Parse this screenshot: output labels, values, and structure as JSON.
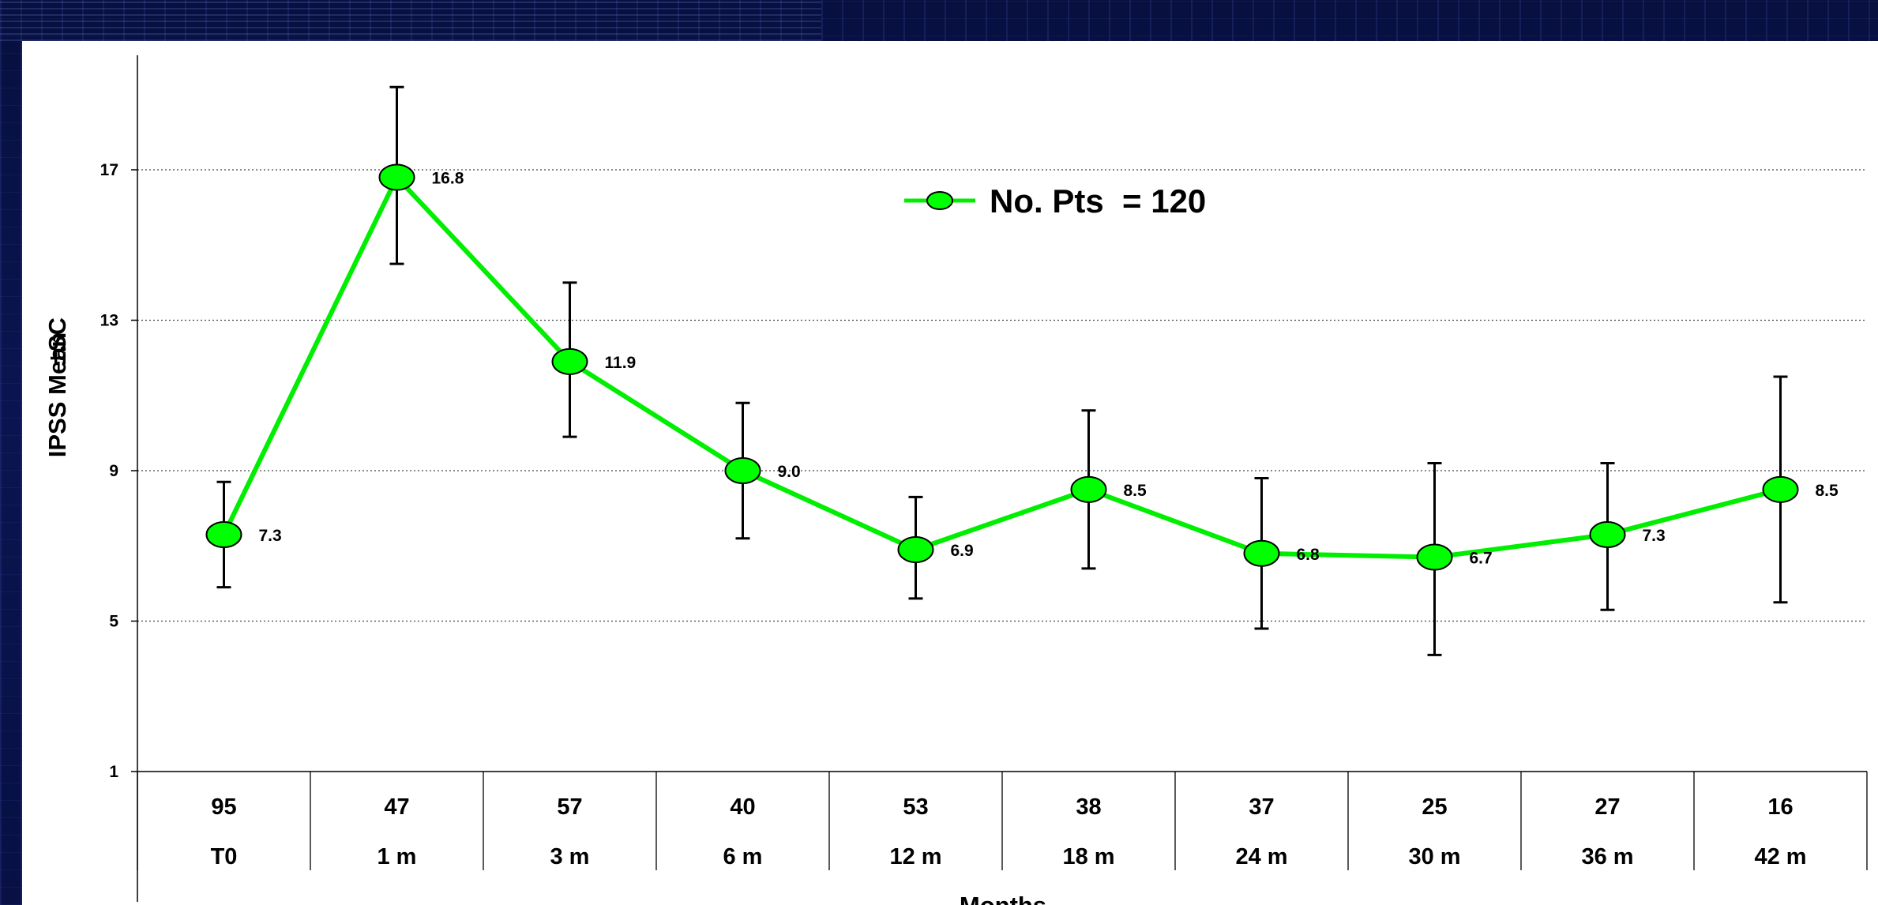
{
  "chart_data": {
    "type": "line",
    "title": "",
    "xlabel": "Months",
    "ylabel": "IPSS Mean",
    "ylabel_overlap": "±SC",
    "ylim": [
      1,
      19
    ],
    "yticks": [
      "17",
      "13",
      "9",
      "5",
      "1"
    ],
    "ytick_values": [
      17,
      13,
      9,
      5,
      1
    ],
    "grid": "horizontal dotted",
    "legend_position": "top-center",
    "categories": [
      "T0",
      "1 m",
      "3 m",
      "6 m",
      "12 m",
      "18 m",
      "24 m",
      "30 m",
      "36 m",
      "42 m"
    ],
    "patients": [
      "95",
      "47",
      "57",
      "40",
      "53",
      "38",
      "37",
      "25",
      "27",
      "16"
    ],
    "series": [
      {
        "name": "No. Pts  = 120",
        "color": "#00ee00",
        "marker_color": "#00ff00",
        "values": [
          7.3,
          16.8,
          11.9,
          9.0,
          6.9,
          8.5,
          6.8,
          6.7,
          7.3,
          8.5
        ],
        "labels": [
          "7.3",
          "16.8",
          "11.9",
          "9.0",
          "6.9",
          "8.5",
          "6.8",
          "6.7",
          "7.3",
          "8.5"
        ],
        "error_upper": [
          8.7,
          19.2,
          14.0,
          10.8,
          8.3,
          10.6,
          8.8,
          9.2,
          9.2,
          11.5
        ],
        "error_lower": [
          5.9,
          14.5,
          9.9,
          7.2,
          5.6,
          6.4,
          4.8,
          4.1,
          5.3,
          5.5
        ]
      }
    ]
  }
}
